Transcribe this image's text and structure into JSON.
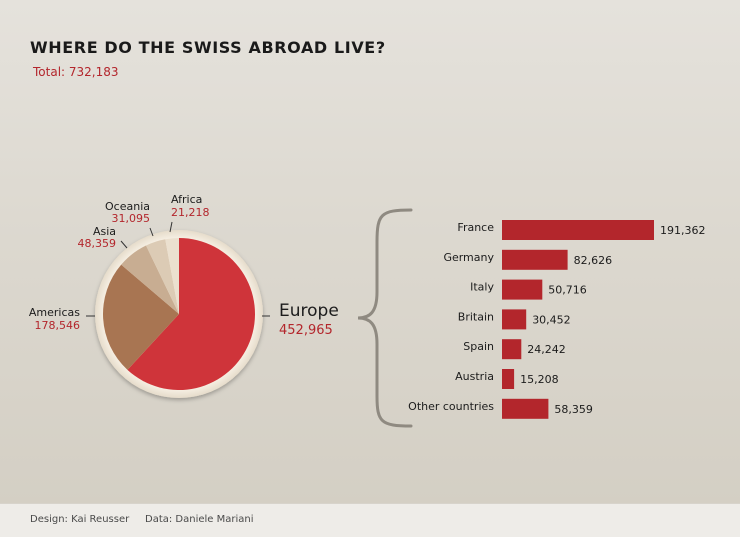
{
  "title": "WHERE DO THE SWISS ABROAD LIVE?",
  "total_label": "Total: 732,183",
  "footer": {
    "design": "Design: Kai Reusser",
    "data": "Data: Daniele Mariani"
  },
  "colors": {
    "accent": "#b3262c",
    "europe": "#cf343a",
    "americas": "#a87552",
    "asia": "#c8ad92",
    "oceania": "#dccbb5",
    "africa": "#ebe0cf",
    "bar": "#b3262c",
    "brace": "#8f8a81"
  },
  "chart_data": [
    {
      "type": "pie",
      "slices": [
        {
          "label": "Europe",
          "value": 452965,
          "value_label": "452,965"
        },
        {
          "label": "Americas",
          "value": 178546,
          "value_label": "178,546"
        },
        {
          "label": "Asia",
          "value": 48359,
          "value_label": "48,359"
        },
        {
          "label": "Oceania",
          "value": 31095,
          "value_label": "31,095"
        },
        {
          "label": "Africa",
          "value": 21218,
          "value_label": "21,218"
        }
      ]
    },
    {
      "type": "bar",
      "orientation": "horizontal",
      "categories": [
        "France",
        "Germany",
        "Italy",
        "Britain",
        "Spain",
        "Austria",
        "Other countries"
      ],
      "values": [
        191362,
        82626,
        50716,
        30452,
        24242,
        15208,
        58359
      ],
      "value_labels": [
        "191,362",
        "82,626",
        "50,716",
        "30,452",
        "24,242",
        "15,208",
        "58,359"
      ]
    }
  ]
}
